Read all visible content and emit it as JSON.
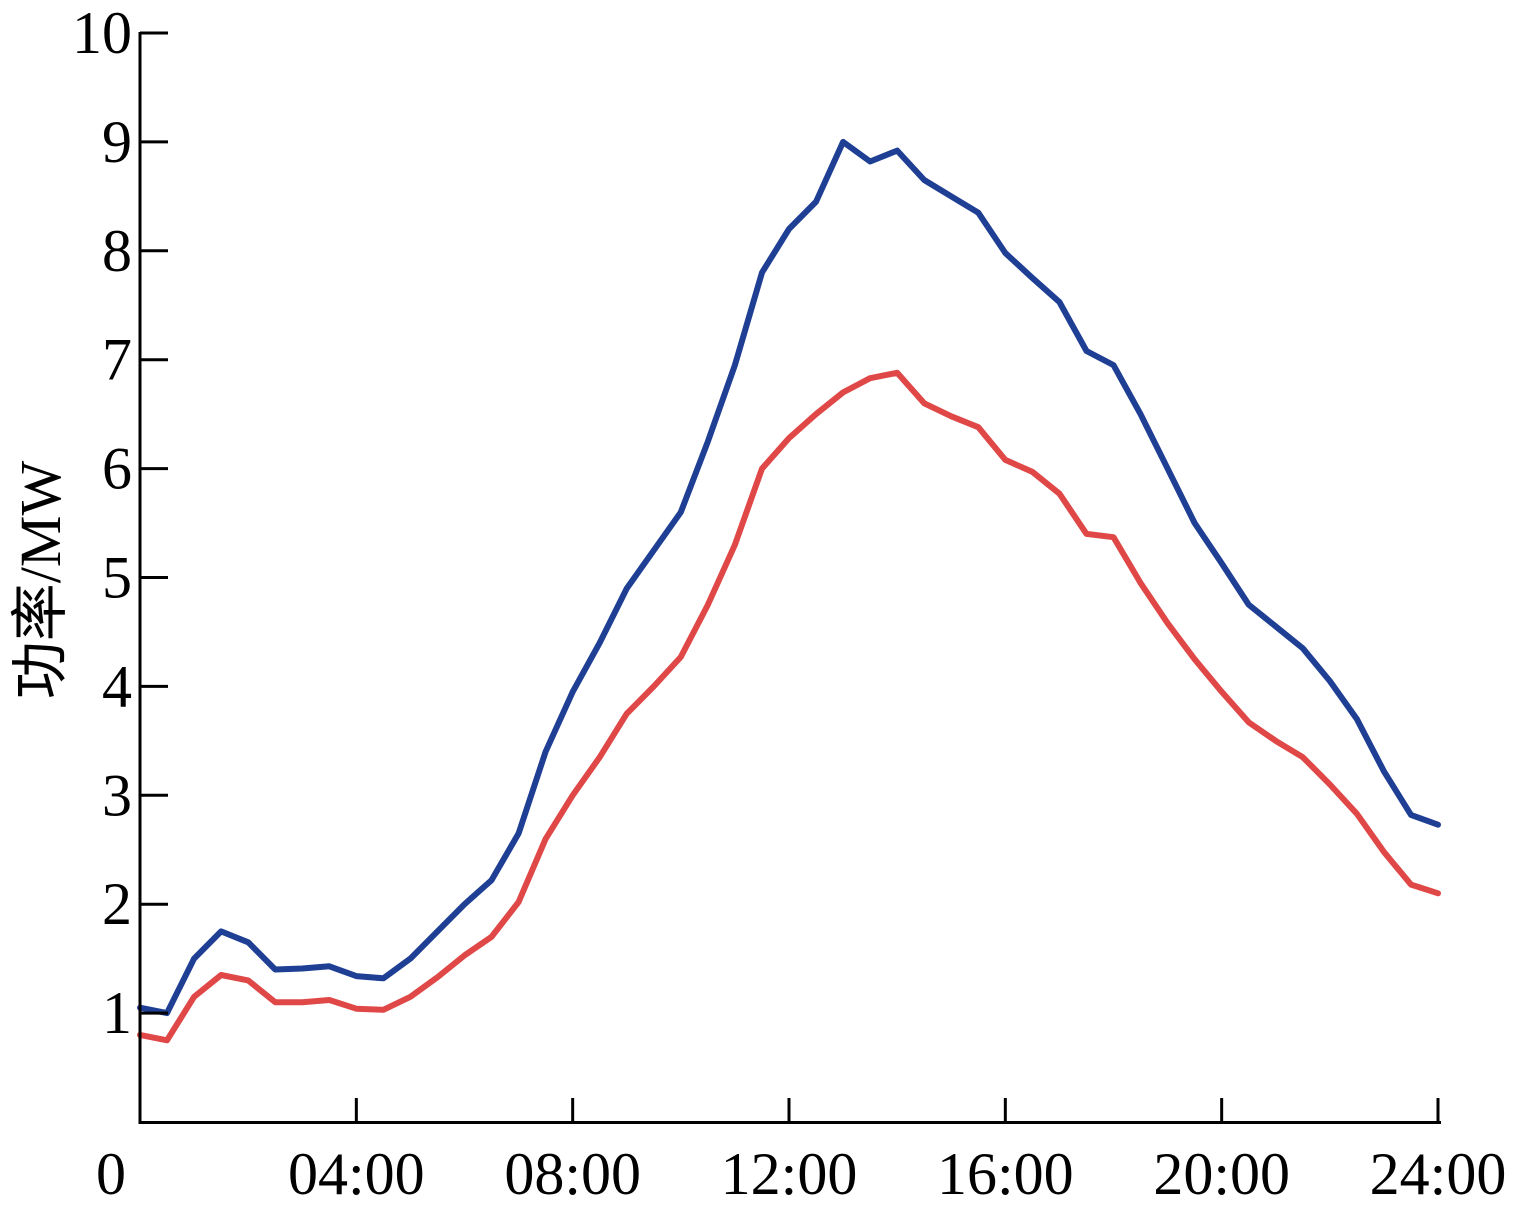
{
  "chart_data": {
    "type": "line",
    "title": "",
    "xlabel": "",
    "ylabel": "功率/MW",
    "xlim": [
      0,
      24
    ],
    "ylim": [
      0,
      10
    ],
    "x_ticks": [
      {
        "value": 0,
        "label": "0"
      },
      {
        "value": 4,
        "label": "04:00"
      },
      {
        "value": 8,
        "label": "08:00"
      },
      {
        "value": 12,
        "label": "12:00"
      },
      {
        "value": 16,
        "label": "16:00"
      },
      {
        "value": 20,
        "label": "20:00"
      },
      {
        "value": 24,
        "label": "24:00"
      }
    ],
    "y_ticks": [
      {
        "value": 1,
        "label": "1"
      },
      {
        "value": 2,
        "label": "2"
      },
      {
        "value": 3,
        "label": "3"
      },
      {
        "value": 4,
        "label": "4"
      },
      {
        "value": 5,
        "label": "5"
      },
      {
        "value": 6,
        "label": "6"
      },
      {
        "value": 7,
        "label": "7"
      },
      {
        "value": 8,
        "label": "8"
      },
      {
        "value": 9,
        "label": "9"
      },
      {
        "value": 10,
        "label": "10"
      }
    ],
    "grid": false,
    "legend": "none",
    "series": [
      {
        "color": "#1f3f94",
        "x": [
          0,
          0.5,
          1,
          1.5,
          2,
          2.5,
          3,
          3.5,
          4,
          4.5,
          5,
          5.5,
          6,
          6.5,
          7,
          7.5,
          8,
          8.5,
          9,
          9.5,
          10,
          10.5,
          11,
          11.5,
          12,
          12.5,
          13,
          13.5,
          14,
          14.5,
          15,
          15.5,
          16,
          16.5,
          17,
          17.5,
          18,
          18.5,
          19,
          19.5,
          20,
          20.5,
          21,
          21.5,
          22,
          22.5,
          23,
          23.5,
          24
        ],
        "y": [
          1.05,
          1.0,
          1.5,
          1.75,
          1.65,
          1.4,
          1.41,
          1.43,
          1.34,
          1.32,
          1.5,
          1.75,
          2.0,
          2.22,
          2.65,
          3.4,
          3.95,
          4.4,
          4.9,
          5.25,
          5.6,
          6.25,
          6.95,
          7.8,
          8.2,
          8.45,
          9.0,
          8.82,
          8.92,
          8.65,
          8.5,
          8.35,
          7.98,
          7.75,
          7.53,
          7.08,
          6.95,
          6.5,
          6.0,
          5.5,
          5.13,
          4.75,
          4.55,
          4.35,
          4.05,
          3.7,
          3.22,
          2.82,
          2.73
        ]
      },
      {
        "color": "#e04848",
        "x": [
          0,
          0.5,
          1,
          1.5,
          2,
          2.5,
          3,
          3.5,
          4,
          4.5,
          5,
          5.5,
          6,
          6.5,
          7,
          7.5,
          8,
          8.5,
          9,
          9.5,
          10,
          10.5,
          11,
          11.5,
          12,
          12.5,
          13,
          13.5,
          14,
          14.5,
          15,
          15.5,
          16,
          16.5,
          17,
          17.5,
          18,
          18.5,
          19,
          19.5,
          20,
          20.5,
          21,
          21.5,
          22,
          22.5,
          23,
          23.5,
          24
        ],
        "y": [
          0.8,
          0.75,
          1.15,
          1.35,
          1.3,
          1.1,
          1.1,
          1.12,
          1.04,
          1.03,
          1.15,
          1.33,
          1.53,
          1.7,
          2.02,
          2.6,
          3.0,
          3.35,
          3.75,
          4.0,
          4.27,
          4.75,
          5.3,
          6.0,
          6.28,
          6.5,
          6.7,
          6.83,
          6.88,
          6.6,
          6.48,
          6.38,
          6.08,
          5.97,
          5.77,
          5.4,
          5.37,
          4.95,
          4.58,
          4.25,
          3.95,
          3.67,
          3.5,
          3.35,
          3.1,
          2.83,
          2.48,
          2.18,
          2.1
        ]
      }
    ]
  }
}
